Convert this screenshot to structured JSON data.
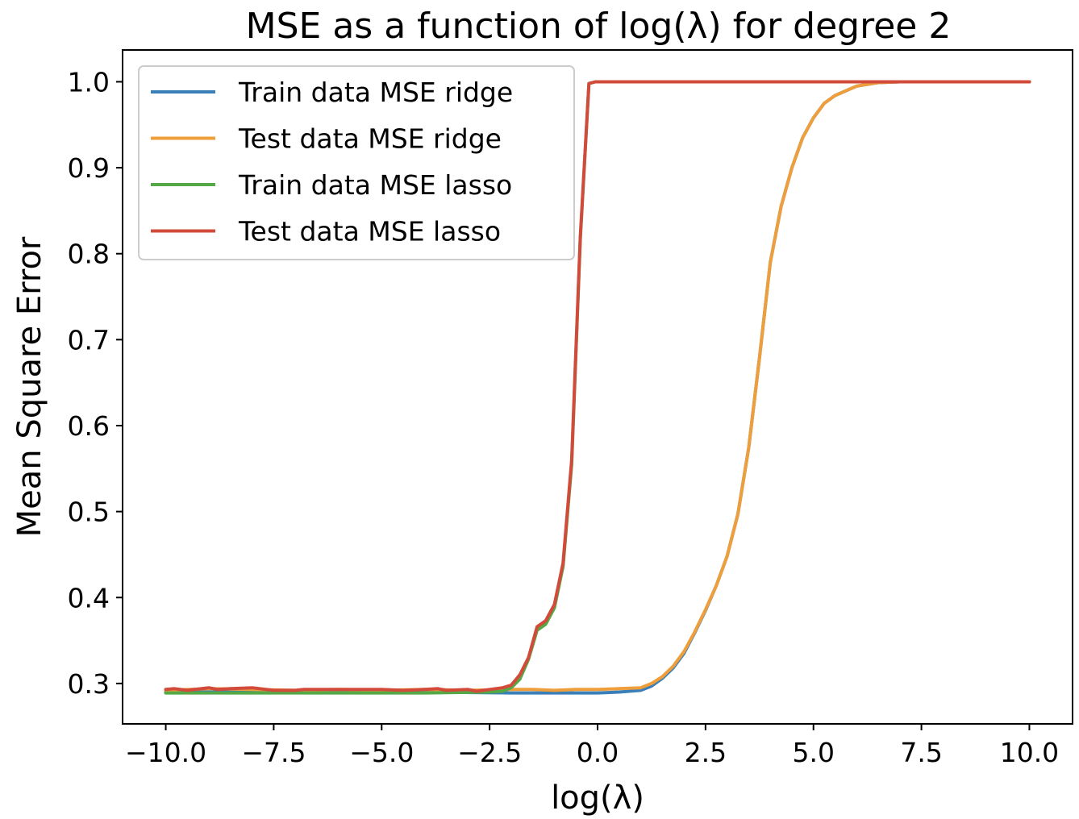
{
  "chart_data": {
    "type": "line",
    "title": "MSE as a function of log(λ) for degree 2",
    "xlabel": "log(λ)",
    "ylabel": "Mean Square Error",
    "xlim": [
      -11.0,
      11.0
    ],
    "ylim": [
      0.253,
      1.037
    ],
    "xticks": [
      -10.0,
      -7.5,
      -5.0,
      -2.5,
      0.0,
      2.5,
      5.0,
      7.5,
      10.0
    ],
    "xtick_labels": [
      "−10.0",
      "−7.5",
      "−5.0",
      "−2.5",
      "0.0",
      "2.5",
      "5.0",
      "7.5",
      "10.0"
    ],
    "yticks": [
      0.3,
      0.4,
      0.5,
      0.6,
      0.7,
      0.8,
      0.9,
      1.0
    ],
    "ytick_labels": [
      "0.3",
      "0.4",
      "0.5",
      "0.6",
      "0.7",
      "0.8",
      "0.9",
      "1.0"
    ],
    "grid": false,
    "legend_position": "top-left",
    "series": [
      {
        "name": "Train data MSE ridge",
        "color": "#3b7fb8",
        "x": [
          -10.0,
          -8.0,
          -6.0,
          -4.0,
          -2.0,
          -1.0,
          0.0,
          0.5,
          1.0,
          1.25,
          1.5,
          1.75,
          2.0,
          2.25,
          2.5,
          2.75,
          3.0,
          3.25,
          3.5,
          3.75,
          4.0,
          4.25,
          4.5,
          4.75,
          5.0,
          5.25,
          5.5,
          6.0,
          6.5,
          7.0,
          8.0,
          10.0
        ],
        "y": [
          0.29,
          0.29,
          0.29,
          0.29,
          0.289,
          0.289,
          0.289,
          0.29,
          0.292,
          0.297,
          0.306,
          0.318,
          0.335,
          0.359,
          0.385,
          0.414,
          0.448,
          0.497,
          0.574,
          0.679,
          0.79,
          0.855,
          0.9,
          0.935,
          0.958,
          0.975,
          0.984,
          0.995,
          0.999,
          1.0,
          1.0,
          1.0
        ]
      },
      {
        "name": "Test data MSE ridge",
        "color": "#ef9e3c",
        "x": [
          -10.0,
          -9.0,
          -8.0,
          -7.0,
          -6.0,
          -5.0,
          -4.0,
          -3.0,
          -2.0,
          -1.5,
          -1.0,
          -0.5,
          0.0,
          0.5,
          1.0,
          1.25,
          1.5,
          1.75,
          2.0,
          2.25,
          2.5,
          2.75,
          3.0,
          3.25,
          3.5,
          3.75,
          4.0,
          4.25,
          4.5,
          4.75,
          5.0,
          5.25,
          5.5,
          6.0,
          6.5,
          7.0,
          8.0,
          10.0
        ],
        "y": [
          0.292,
          0.294,
          0.293,
          0.292,
          0.293,
          0.292,
          0.293,
          0.292,
          0.293,
          0.293,
          0.292,
          0.293,
          0.293,
          0.294,
          0.295,
          0.3,
          0.308,
          0.32,
          0.337,
          0.36,
          0.386,
          0.414,
          0.448,
          0.497,
          0.574,
          0.679,
          0.79,
          0.855,
          0.9,
          0.935,
          0.958,
          0.975,
          0.984,
          0.995,
          0.999,
          1.0,
          1.0,
          1.0
        ]
      },
      {
        "name": "Train data MSE lasso",
        "color": "#55a846",
        "x": [
          -10.0,
          -8.0,
          -6.0,
          -4.0,
          -2.5,
          -2.2,
          -2.0,
          -1.8,
          -1.6,
          -1.4,
          -1.2,
          -1.0,
          -0.8,
          -0.6,
          -0.4,
          -0.2,
          -0.05,
          0.5,
          2.0,
          5.0,
          7.5,
          10.0
        ],
        "y": [
          0.289,
          0.289,
          0.289,
          0.289,
          0.29,
          0.291,
          0.295,
          0.305,
          0.328,
          0.362,
          0.369,
          0.388,
          0.436,
          0.555,
          0.817,
          0.998,
          1.0,
          1.0,
          1.0,
          1.0,
          1.0,
          1.0
        ]
      },
      {
        "name": "Test data MSE lasso",
        "color": "#d24b3a",
        "x": [
          -10.0,
          -9.8,
          -9.5,
          -9.0,
          -8.8,
          -8.5,
          -8.0,
          -7.5,
          -7.0,
          -6.8,
          -6.5,
          -6.0,
          -5.5,
          -5.0,
          -4.5,
          -4.0,
          -3.7,
          -3.5,
          -3.0,
          -2.8,
          -2.5,
          -2.2,
          -2.0,
          -1.8,
          -1.6,
          -1.4,
          -1.2,
          -1.0,
          -0.8,
          -0.6,
          -0.4,
          -0.2,
          -0.05,
          0.5,
          2.0,
          5.0,
          7.5,
          10.0
        ],
        "y": [
          0.293,
          0.294,
          0.292,
          0.295,
          0.293,
          0.294,
          0.295,
          0.292,
          0.292,
          0.293,
          0.293,
          0.293,
          0.293,
          0.293,
          0.292,
          0.293,
          0.294,
          0.292,
          0.293,
          0.291,
          0.293,
          0.295,
          0.298,
          0.31,
          0.33,
          0.366,
          0.373,
          0.392,
          0.44,
          0.56,
          0.82,
          0.998,
          1.0,
          1.0,
          1.0,
          1.0,
          1.0,
          1.0
        ]
      }
    ]
  }
}
